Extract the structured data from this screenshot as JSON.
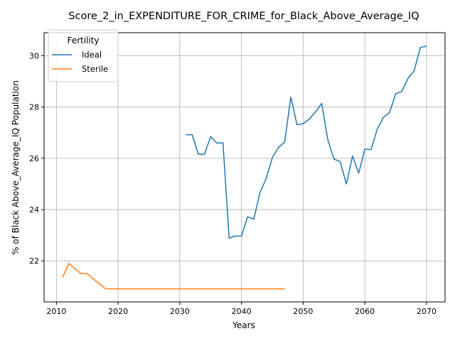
{
  "chart_data": {
    "type": "line",
    "title": "Score_2_in_EXPENDITURE_FOR_CRIME_for_Black_Above_Average_IQ",
    "xlabel": "Years",
    "ylabel": "% of Black Above_Average_IQ Population",
    "xlim": [
      2008,
      2073
    ],
    "ylim": [
      20.4,
      30.9
    ],
    "xticks": [
      2010,
      2020,
      2030,
      2040,
      2050,
      2060,
      2070
    ],
    "yticks": [
      22,
      24,
      26,
      28,
      30
    ],
    "grid": true,
    "legend": {
      "title": "Fertility",
      "placement": "top-left"
    },
    "series": [
      {
        "name": "Ideal",
        "color": "#1f77b4",
        "x": [
          2031,
          2032,
          2033,
          2034,
          2035,
          2036,
          2037,
          2038,
          2039,
          2040,
          2041,
          2042,
          2043,
          2044,
          2045,
          2046,
          2047,
          2048,
          2049,
          2050,
          2051,
          2052,
          2053,
          2054,
          2055,
          2056,
          2057,
          2058,
          2059,
          2060,
          2061,
          2062,
          2063,
          2064,
          2065,
          2066,
          2067,
          2068,
          2069,
          2070
        ],
        "y": [
          26.92,
          26.92,
          26.16,
          26.16,
          26.85,
          26.6,
          26.6,
          22.89,
          22.97,
          22.97,
          23.72,
          23.63,
          24.67,
          25.21,
          26.02,
          26.43,
          26.63,
          28.39,
          27.31,
          27.35,
          27.53,
          27.81,
          28.14,
          26.72,
          25.97,
          25.87,
          25.0,
          26.09,
          25.42,
          26.36,
          26.34,
          27.13,
          27.6,
          27.78,
          28.52,
          28.61,
          29.12,
          29.42,
          30.33,
          30.37
        ]
      },
      {
        "name": "Sterile",
        "color": "#ff7f0e",
        "x": [
          2011,
          2012,
          2013,
          2014,
          2015,
          2016,
          2017,
          2018,
          2019,
          2020,
          2021,
          2022,
          2023,
          2024,
          2025,
          2026,
          2027,
          2028,
          2029,
          2030,
          2031,
          2032,
          2033,
          2034,
          2035,
          2036,
          2037,
          2038,
          2039,
          2040,
          2041,
          2042,
          2043,
          2044,
          2045,
          2046,
          2047
        ],
        "y": [
          21.36,
          21.9,
          21.7,
          21.5,
          21.5,
          21.3,
          21.1,
          20.91,
          20.91,
          20.91,
          20.91,
          20.91,
          20.91,
          20.91,
          20.91,
          20.91,
          20.91,
          20.91,
          20.91,
          20.91,
          20.91,
          20.91,
          20.91,
          20.91,
          20.91,
          20.91,
          20.91,
          20.91,
          20.91,
          20.91,
          20.91,
          20.91,
          20.91,
          20.91,
          20.91,
          20.91,
          20.91
        ]
      }
    ]
  }
}
